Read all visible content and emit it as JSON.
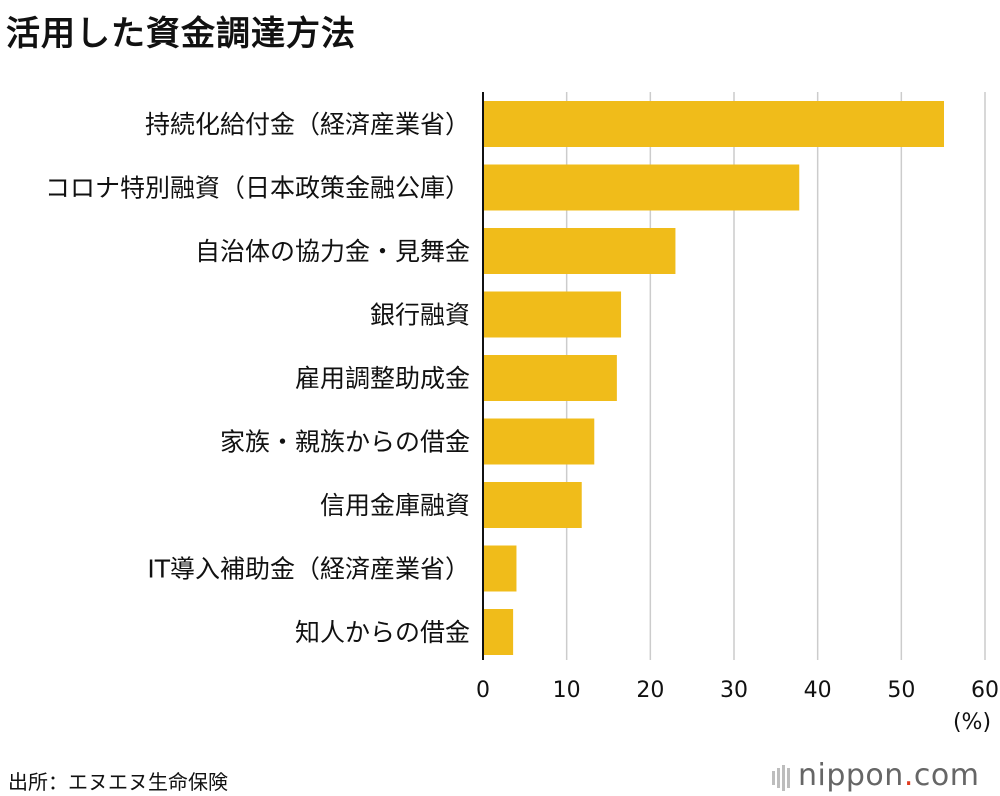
{
  "title": "活用した資金調達方法",
  "unit": "(%)",
  "source": "出所：エヌエヌ生命保険",
  "logo": {
    "name": "nippon",
    "dot": ".",
    "suffix": "com"
  },
  "colors": {
    "bar": "#f0bc1a",
    "grid": "#cccccc",
    "axis": "#111111",
    "logo_dot": "#e03a1e"
  },
  "chart_data": {
    "type": "bar",
    "orientation": "horizontal",
    "categories": [
      "持続化給付金（経済産業省）",
      "コロナ特別融資（日本政策金融公庫）",
      "自治体の協力金・見舞金",
      "銀行融資",
      "雇用調整助成金",
      "家族・親族からの借金",
      "信用金庫融資",
      "IT導入補助金（経済産業省）",
      "知人からの借金"
    ],
    "values": [
      55.1,
      37.8,
      23.0,
      16.5,
      16.0,
      13.3,
      11.8,
      4.0,
      3.6
    ],
    "xlim": [
      0,
      60
    ],
    "xticks": [
      "0",
      "10",
      "20",
      "30",
      "40",
      "50",
      "60"
    ],
    "grid": true
  }
}
